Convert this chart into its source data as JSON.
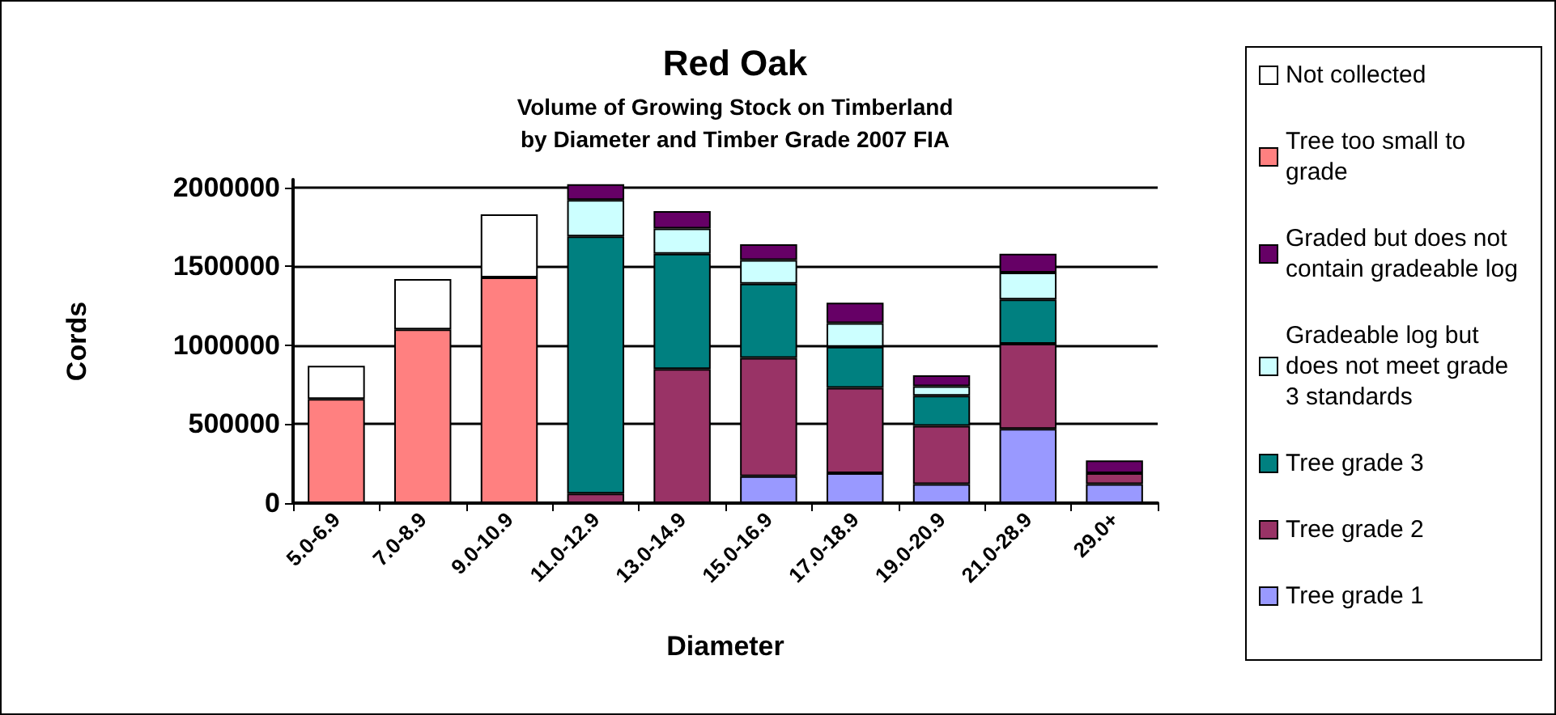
{
  "chart_data": {
    "type": "bar",
    "title": "Red Oak",
    "subtitle": "Volume of Growing Stock on Timberland\nby Diameter and Timber Grade 2007 FIA",
    "xlabel": "Diameter",
    "ylabel": "Cords",
    "categories": [
      "5.0-6.9",
      "7.0-8.9",
      "9.0-10.9",
      "11.0-12.9",
      "13.0-14.9",
      "15.0-16.9",
      "17.0-18.9",
      "19.0-20.9",
      "21.0-28.9",
      "29.0+"
    ],
    "stacked": true,
    "ylim": [
      0,
      2050000
    ],
    "yticks": [
      0,
      500000,
      1000000,
      1500000,
      2000000
    ],
    "grid": "y",
    "legend": "right",
    "series": [
      {
        "name": "Tree grade 1",
        "color": "#9999ff",
        "values": [
          null,
          null,
          null,
          null,
          null,
          170000,
          190000,
          120000,
          470000,
          120000
        ]
      },
      {
        "name": "Tree grade 2",
        "color": "#993366",
        "values": [
          null,
          null,
          null,
          60000,
          850000,
          750000,
          540000,
          370000,
          540000,
          70000
        ]
      },
      {
        "name": "Tree grade 3",
        "color": "#008080",
        "values": [
          null,
          null,
          null,
          1630000,
          730000,
          470000,
          260000,
          190000,
          280000,
          null
        ]
      },
      {
        "name": "Gradeable log but does not meet grade 3 standards",
        "color": "#ccffff",
        "values": [
          null,
          null,
          null,
          230000,
          160000,
          150000,
          150000,
          60000,
          170000,
          null
        ]
      },
      {
        "name": "Graded but does not contain gradeable log",
        "color": "#660066",
        "values": [
          null,
          null,
          null,
          100000,
          110000,
          100000,
          130000,
          70000,
          120000,
          80000
        ]
      },
      {
        "name": "Tree too small to grade",
        "color": "#ff8080",
        "values": [
          660000,
          1100000,
          1430000,
          null,
          null,
          null,
          null,
          null,
          null,
          null
        ]
      },
      {
        "name": "Not collected",
        "color": "#ffffff",
        "values": [
          210000,
          320000,
          400000,
          null,
          null,
          null,
          null,
          null,
          null,
          null
        ]
      }
    ]
  }
}
